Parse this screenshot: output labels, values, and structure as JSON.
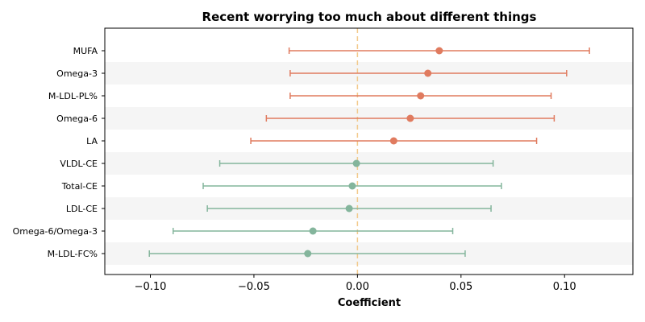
{
  "chart_data": {
    "type": "forest",
    "title": "Recent worrying too much about different things",
    "xlabel": "Coefficient",
    "ylabel": "",
    "xlim": [
      -0.122,
      0.133
    ],
    "xticks": [
      -0.1,
      -0.05,
      0.0,
      0.05,
      0.1
    ],
    "xtick_labels": [
      "−0.10",
      "−0.05",
      "0.00",
      "0.05",
      "0.10"
    ],
    "reference_line": 0.0,
    "grid": false,
    "colors": {
      "positive": "#e07b5f",
      "negative": "#84b59c",
      "reference": "#f2c98a",
      "band": "#f5f5f5"
    },
    "items": [
      {
        "label": "MUFA",
        "estimate": 0.0395,
        "lower": -0.033,
        "upper": 0.112
      },
      {
        "label": "Omega-3",
        "estimate": 0.034,
        "lower": -0.0325,
        "upper": 0.101
      },
      {
        "label": "M-LDL-PL%",
        "estimate": 0.0305,
        "lower": -0.0325,
        "upper": 0.0935
      },
      {
        "label": "Omega-6",
        "estimate": 0.0255,
        "lower": -0.044,
        "upper": 0.095
      },
      {
        "label": "LA",
        "estimate": 0.0175,
        "lower": -0.0515,
        "upper": 0.0865
      },
      {
        "label": "VLDL-CE",
        "estimate": -0.0005,
        "lower": -0.0665,
        "upper": 0.0655
      },
      {
        "label": "Total-CE",
        "estimate": -0.0025,
        "lower": -0.0745,
        "upper": 0.0695
      },
      {
        "label": "LDL-CE",
        "estimate": -0.004,
        "lower": -0.0725,
        "upper": 0.0645
      },
      {
        "label": "Omega-6/Omega-3",
        "estimate": -0.0215,
        "lower": -0.089,
        "upper": 0.046
      },
      {
        "label": "M-LDL-FC%",
        "estimate": -0.024,
        "lower": -0.1005,
        "upper": 0.052
      }
    ]
  }
}
